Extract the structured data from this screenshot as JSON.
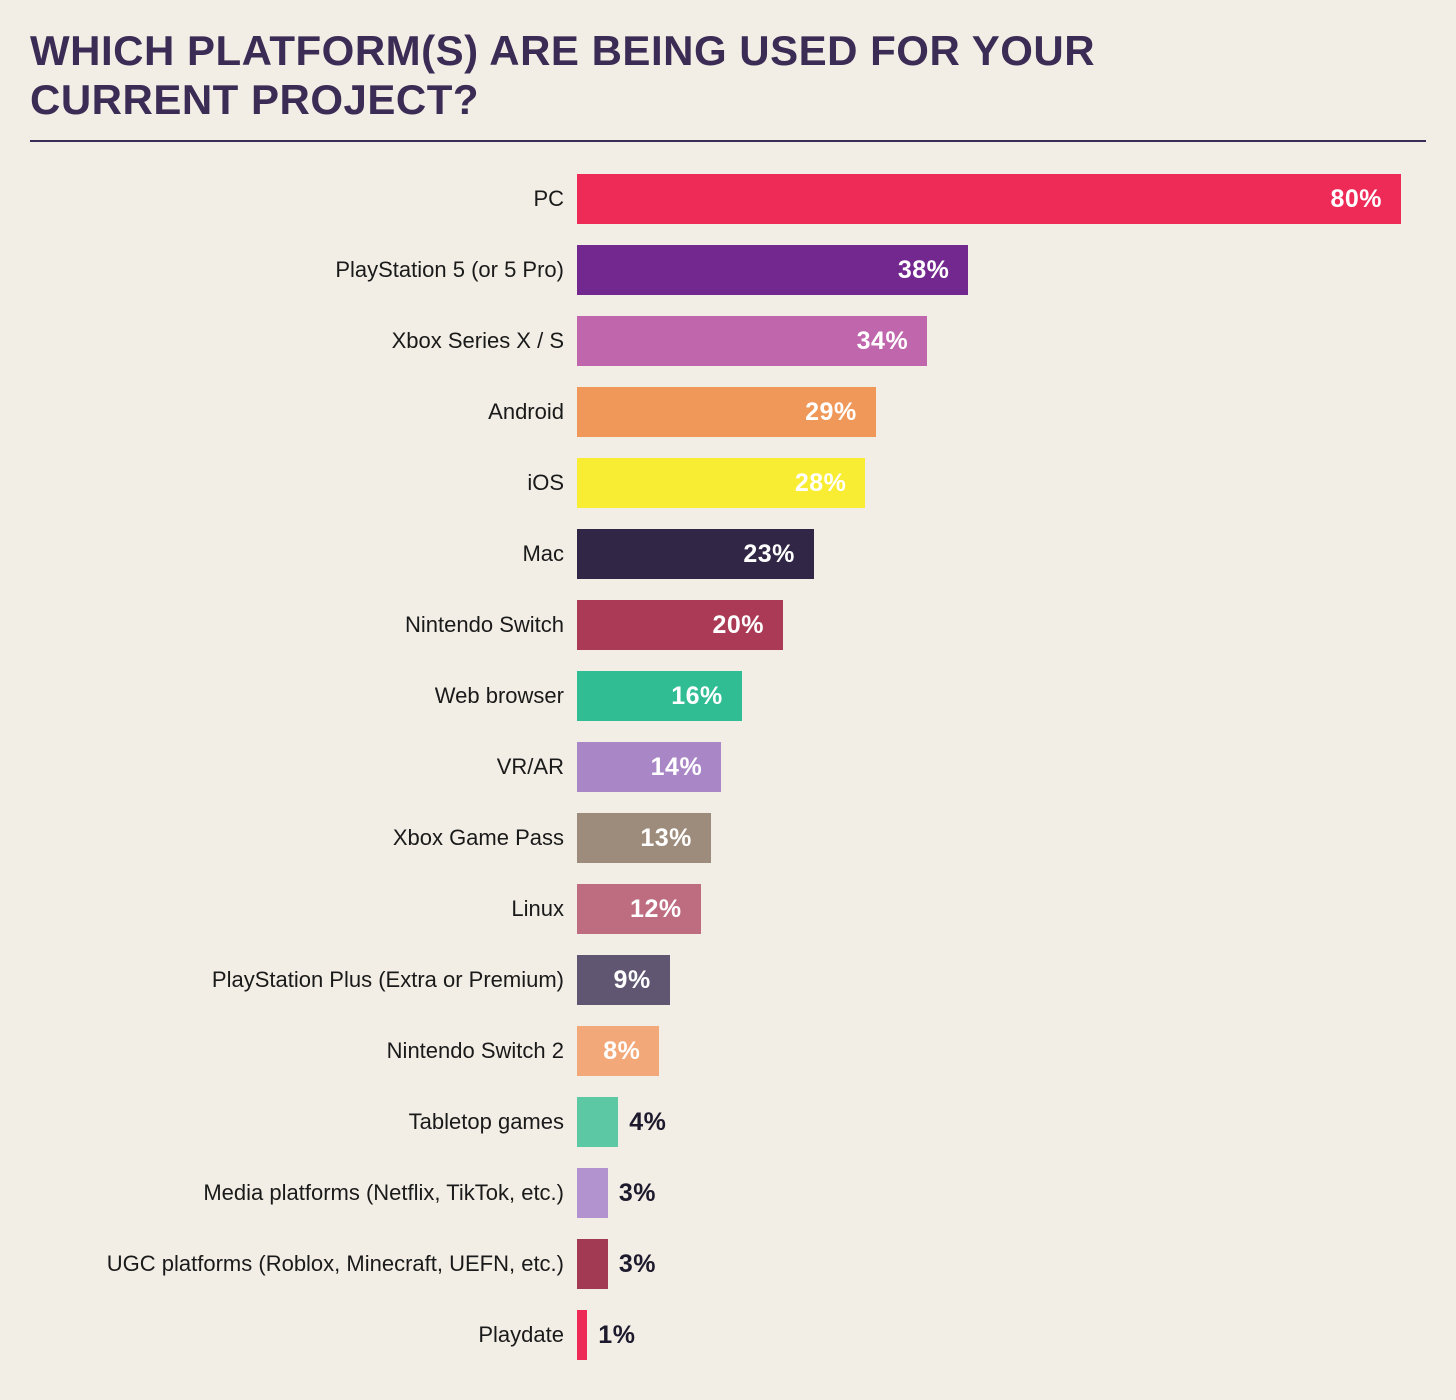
{
  "page": {
    "background": "#F2EEE5",
    "title": "WHICH PLATFORM(S) ARE BEING USED FOR YOUR CURRENT PROJECT?",
    "title_color": "#3B2C55",
    "divider_color": "#3B2C55"
  },
  "chart_data": {
    "type": "bar",
    "orientation": "horizontal",
    "title": "WHICH PLATFORM(S) ARE BEING USED FOR YOUR CURRENT PROJECT?",
    "xlabel": "",
    "ylabel": "",
    "xlim": [
      0,
      80
    ],
    "grid": false,
    "legend": false,
    "value_suffix": "%",
    "label_inside_min": 8,
    "categories": [
      "PC",
      "PlayStation 5 (or 5 Pro)",
      "Xbox Series X / S",
      "Android",
      "iOS",
      "Mac",
      "Nintendo Switch",
      "Web browser",
      "VR/AR",
      "Xbox Game Pass",
      "Linux",
      "PlayStation Plus (Extra or Premium)",
      "Nintendo Switch 2",
      "Tabletop games",
      "Media platforms (Netflix, TikTok, etc.)",
      "UGC platforms (Roblox, Minecraft, UEFN, etc.)",
      "Playdate"
    ],
    "values": [
      80,
      38,
      34,
      29,
      28,
      23,
      20,
      16,
      14,
      13,
      12,
      9,
      8,
      4,
      3,
      3,
      1
    ],
    "colors": [
      "#EE2B57",
      "#73288F",
      "#BF66AD",
      "#F0975A",
      "#F9ED33",
      "#312645",
      "#AA3A55",
      "#31BD94",
      "#A987C7",
      "#9D8C7B",
      "#BE6C80",
      "#615671",
      "#F2A878",
      "#5DC9A4",
      "#B393CF",
      "#A13A52",
      "#EE2B57"
    ],
    "value_label_color_inside": "#FFFFFF",
    "value_label_color_outside": "#1E1A2E",
    "category_label_color": "#1A1A1A"
  }
}
